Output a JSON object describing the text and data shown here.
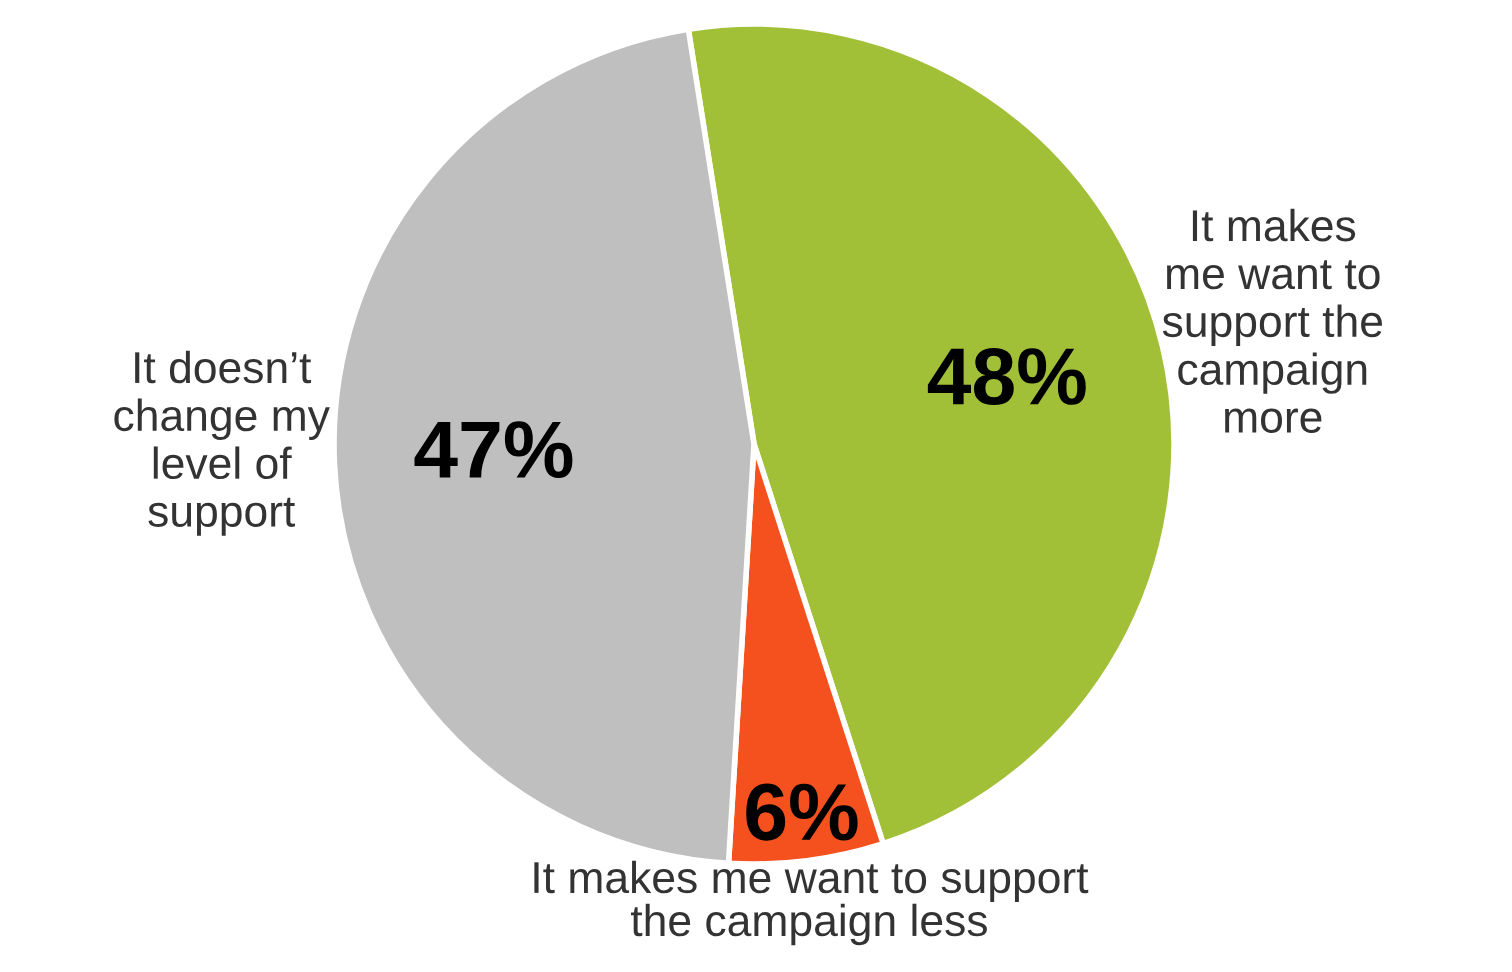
{
  "chart_data": {
    "type": "pie",
    "categories": [
      "It makes\nme want to\nsupport the\ncampaign\nmore",
      "It makes me want to support\nthe campaign less",
      "It doesn’t\nchange my\nlevel of\nsupport"
    ],
    "values": [
      48,
      6,
      47
    ],
    "colors": [
      "#a2c037",
      "#f4511e",
      "#bfbfbf"
    ],
    "value_labels": [
      "48%",
      "6%",
      "47%"
    ]
  }
}
